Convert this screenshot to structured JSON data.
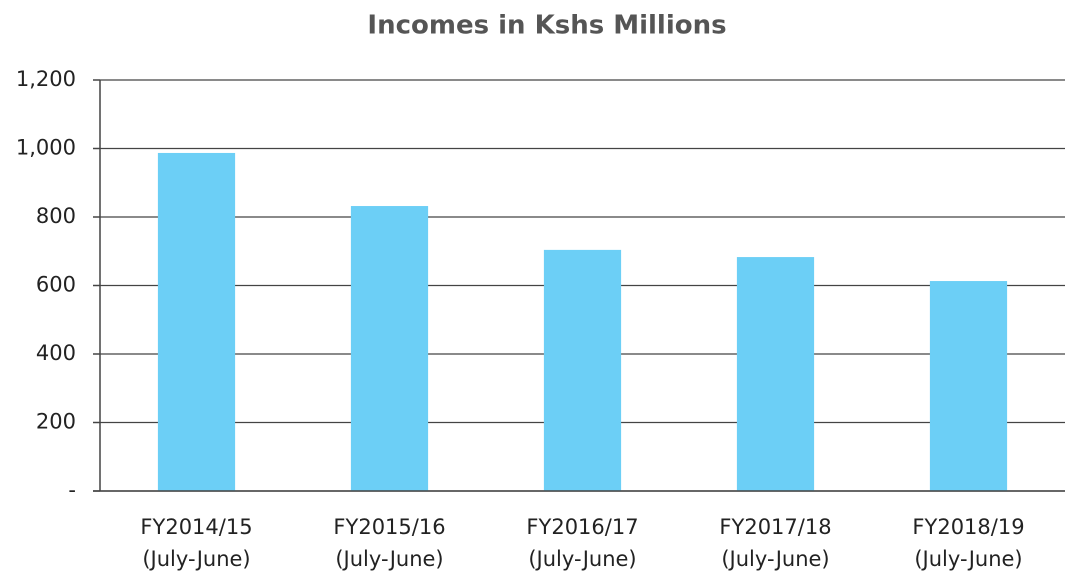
{
  "chart_data": {
    "type": "bar",
    "title": "Incomes in Kshs Millions",
    "categories": [
      "FY2014/15 (July-June)",
      "FY2015/16 (July-June)",
      "FY2016/17 (July-June)",
      "FY2017/18 (July-June)",
      "FY2018/19 (July-June)"
    ],
    "values": [
      987,
      832,
      704,
      683,
      613
    ],
    "color": "#6ccff6",
    "ylim": [
      0,
      1200
    ],
    "yticks": [
      {
        "value": 0,
        "label": "-"
      },
      200,
      400,
      600,
      800,
      {
        "value": 1000,
        "label": "1,000"
      },
      {
        "value": 1200,
        "label": "1,200"
      }
    ],
    "grid": true
  }
}
